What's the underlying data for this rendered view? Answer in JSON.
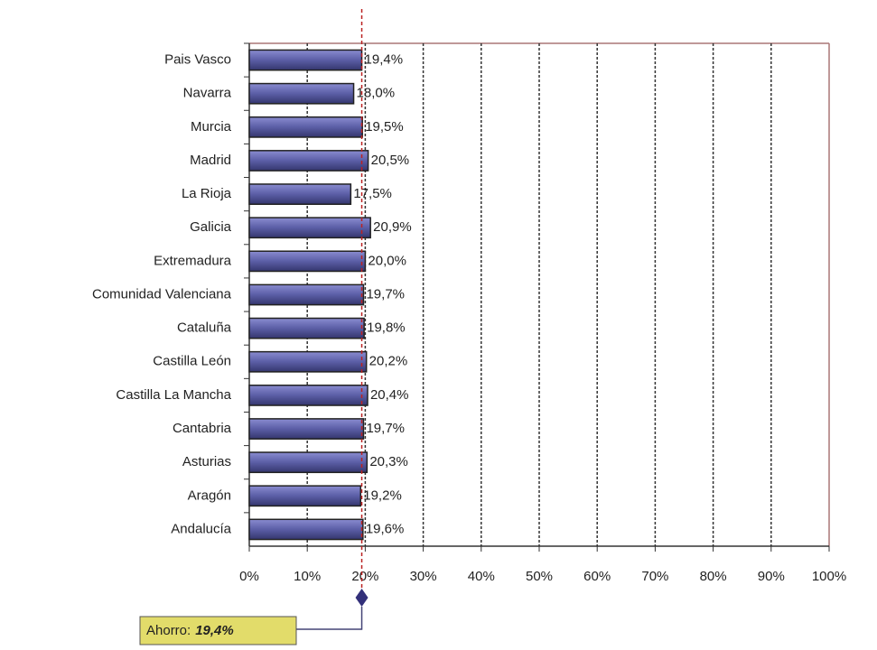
{
  "chart_data": {
    "type": "barh",
    "categories": [
      "Pais Vasco",
      "Navarra",
      "Murcia",
      "Madrid",
      "La Rioja",
      "Galicia",
      "Extremadura",
      "Comunidad Valenciana",
      "Cataluña",
      "Castilla León",
      "Castilla La Mancha",
      "Cantabria",
      "Asturias",
      "Aragón",
      "Andalucía"
    ],
    "values": [
      19.4,
      18.0,
      19.5,
      20.5,
      17.5,
      20.9,
      20.0,
      19.7,
      19.8,
      20.2,
      20.4,
      19.7,
      20.3,
      19.2,
      19.6
    ],
    "value_labels": [
      "19,4%",
      "18,0%",
      "19,5%",
      "20,5%",
      "17,5%",
      "20,9%",
      "20,0%",
      "19,7%",
      "19,8%",
      "20,2%",
      "20,4%",
      "19,7%",
      "20,3%",
      "19,2%",
      "19,6%"
    ],
    "color": "#5b5ea6",
    "xlim": [
      0,
      100
    ],
    "xticks": [
      {
        "value": 0,
        "label": "0%"
      },
      {
        "value": 10,
        "label": "10%"
      },
      {
        "value": 20,
        "label": "20%"
      },
      {
        "value": 30,
        "label": "30%"
      },
      {
        "value": 40,
        "label": "40%"
      },
      {
        "value": 50,
        "label": "50%"
      },
      {
        "value": 60,
        "label": "60%"
      },
      {
        "value": 70,
        "label": "70%"
      },
      {
        "value": 80,
        "label": "80%"
      },
      {
        "value": 90,
        "label": "90%"
      },
      {
        "value": 100,
        "label": "100%"
      }
    ],
    "grid": true,
    "annotation": {
      "label": "Ahorro:",
      "value": 19.4,
      "value_label": "19,4%"
    }
  }
}
